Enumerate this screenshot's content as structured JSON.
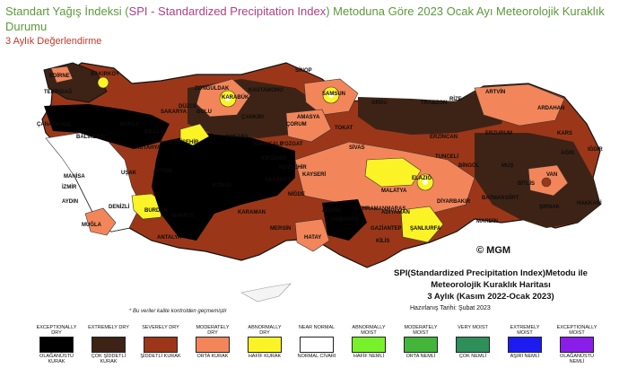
{
  "page": {
    "title_prefix": "Standart Yağış İndeksi (",
    "title_highlight": "SPI - Standardized Precipitation Index",
    "title_suffix": ") Metoduna Göre 2023 Ocak Ayı Meteorolojik Kuraklık Durumu",
    "subtitle": "3 Aylık Değerlendirme"
  },
  "map": {
    "cities": [
      "SİNOP",
      "BAKIRKÖY",
      "TEKİRDAĞ",
      "EDİRNE",
      "ZONGULDAK",
      "KARABÜK",
      "KASTAMONU",
      "SAMSUN",
      "ORDU",
      "TRABZON",
      "RİZE",
      "ARTVİN",
      "ARDAHAN",
      "AMASYA",
      "TOKAT",
      "ÇANKIRI",
      "ÇORUM",
      "BOLU",
      "DÜZCE",
      "SAKARYA",
      "BURSA",
      "BİLECİK",
      "KÜTAHYA",
      "BALIKESİR",
      "ÇANAKKALE",
      "YOZGAT",
      "SİVAS",
      "ERZİNCAN",
      "ERZURUM",
      "KARS",
      "IĞDIR",
      "AĞRI",
      "TUNCELİ",
      "BİNGÖL",
      "MUŞ",
      "BİTLİS",
      "VAN",
      "HAKKARİ",
      "ŞIRNAK",
      "SİİRT",
      "BATMAN",
      "MARDİN",
      "DİYARBAKIR",
      "ELAZIĞ",
      "MALATYA",
      "ADIYAMAN",
      "ŞANLIURFA",
      "GAZİANTEP",
      "KİLİS",
      "HATAY",
      "OSMANİYE",
      "ADANA",
      "MERSİN",
      "KARAMAN",
      "KONYA",
      "AKSARAY",
      "NİĞDE",
      "KAYSERİ",
      "NEVŞEHİR",
      "KIRŞEHİR",
      "KIRIKKALE",
      "ANKARA",
      "ESKİŞEHİR",
      "AFYON",
      "UŞAK",
      "MANİSA",
      "İZMİR",
      "AYDIN",
      "DENİZLİ",
      "MUĞLA",
      "BURDUR",
      "ISPARTA",
      "ANTALYA",
      "KAHRAMANMARAŞ"
    ],
    "note": "* Bu veriler kalite kontrolden geçmemiştir",
    "logo": "© MGM"
  },
  "info_box": {
    "line1": "SPI(Standardized Precipitation Index)Metodu ile",
    "line2": "Meteorolojik Kuraklık Haritası",
    "line3": "3 Aylık (Kasım 2022-Ocak 2023)",
    "line4": "Hazırlanış Tarihi: Şubat 2023"
  },
  "legend": [
    {
      "top": "EXCEPTIONALLY DRY",
      "bottom": "OLAĞANÜSTÜ KURAK",
      "color": "#000000"
    },
    {
      "top": "EXTREMELY DRY",
      "bottom": "ÇOK ŞİDDETLİ KURAK",
      "color": "#3d2316"
    },
    {
      "top": "SEVERELY DRY",
      "bottom": "ŞİDDETLİ KURAK",
      "color": "#9b3718"
    },
    {
      "top": "MODERATELY DRY",
      "bottom": "ORTA KURAK",
      "color": "#f2865a"
    },
    {
      "top": "ABNORMALLY DRY",
      "bottom": "HAFİF KURAK",
      "color": "#fbf325"
    },
    {
      "top": "NEAR NORMAL",
      "bottom": "NORMAL CİVARI",
      "color": "#ffffff"
    },
    {
      "top": "ABNORMALLY MOIST",
      "bottom": "HAFİF NEMLİ",
      "color": "#79f02c"
    },
    {
      "top": "MODERATELY MOIST",
      "bottom": "ORTA NEMLİ",
      "color": "#43b53a"
    },
    {
      "top": "VERY MOIST",
      "bottom": "ÇOK NEMLİ",
      "color": "#2f8f5a"
    },
    {
      "top": "EXTREMELY MOIST",
      "bottom": "AŞIRI NEMLİ",
      "color": "#1c1cf0"
    },
    {
      "top": "EXCEPTIONALLY MOIST",
      "bottom": "OLAĞANÜSTÜ NEMLİ",
      "color": "#8a1ee8"
    }
  ]
}
